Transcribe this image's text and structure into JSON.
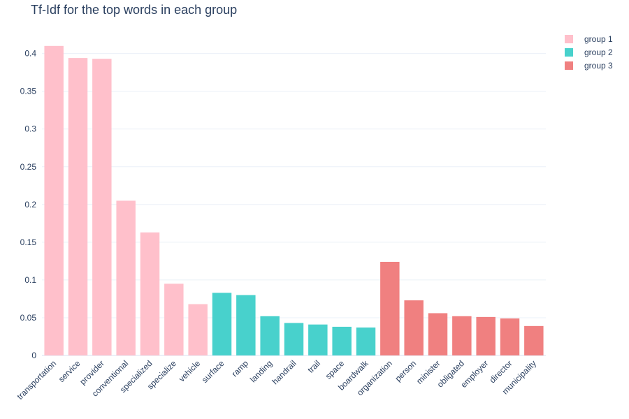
{
  "chart_data": {
    "type": "bar",
    "title": "Tf-Idf for the top words in each group",
    "xlabel": "",
    "ylabel": "",
    "ylim": [
      0,
      0.42
    ],
    "yticks": [
      0,
      0.05,
      0.1,
      0.15,
      0.2,
      0.25,
      0.3,
      0.35,
      0.4
    ],
    "ytick_labels": [
      "0",
      "0.05",
      "0.1",
      "0.15",
      "0.2",
      "0.25",
      "0.3",
      "0.35",
      "0.4"
    ],
    "grid": true,
    "legend_position": "top-right",
    "categories": [
      "transportation",
      "service",
      "provider",
      "conventional",
      "specialized",
      "specialize",
      "vehicle",
      "surface",
      "ramp",
      "landing",
      "handrail",
      "trail",
      "space",
      "boardwalk",
      "organization",
      "person",
      "minister",
      "obligated",
      "employer",
      "director",
      "municipality"
    ],
    "series": [
      {
        "name": "group 1",
        "color": "#ffc0cb",
        "x": [
          "transportation",
          "service",
          "provider",
          "conventional",
          "specialized",
          "specialize",
          "vehicle"
        ],
        "values": [
          0.41,
          0.394,
          0.393,
          0.205,
          0.163,
          0.095,
          0.068
        ]
      },
      {
        "name": "group 2",
        "color": "#48d1cc",
        "x": [
          "surface",
          "ramp",
          "landing",
          "handrail",
          "trail",
          "space",
          "boardwalk"
        ],
        "values": [
          0.083,
          0.08,
          0.052,
          0.043,
          0.041,
          0.038,
          0.037
        ]
      },
      {
        "name": "group 3",
        "color": "#f08080",
        "x": [
          "organization",
          "person",
          "minister",
          "obligated",
          "employer",
          "director",
          "municipality"
        ],
        "values": [
          0.124,
          0.073,
          0.056,
          0.052,
          0.051,
          0.049,
          0.039
        ]
      }
    ]
  }
}
